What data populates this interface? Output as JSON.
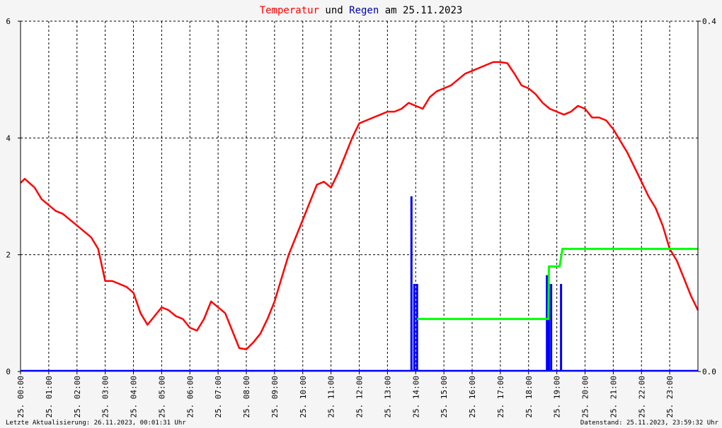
{
  "title": {
    "part1": "Temperatur",
    "part2": " und ",
    "part3": "Regen",
    "part4": " am 25.11.2023",
    "color1": "#ff0000",
    "color2": "#000000",
    "color3": "#0000aa",
    "color4": "#000000"
  },
  "footer": {
    "left": "Letzte Aktualisierung: 26.11.2023, 00:01:31 Uhr",
    "right": "Datenstand: 25.11.2023, 23:59:32 Uhr"
  },
  "chart_data": {
    "type": "line",
    "x_unit": "hour",
    "x_range": [
      0,
      24
    ],
    "x_ticks": [
      "25. 00:00",
      "25. 01:00",
      "25. 02:00",
      "25. 03:00",
      "25. 04:00",
      "25. 05:00",
      "25. 06:00",
      "25. 07:00",
      "25. 08:00",
      "25. 09:00",
      "25. 10:00",
      "25. 11:00",
      "25. 12:00",
      "25. 13:00",
      "25. 14:00",
      "25. 15:00",
      "25. 16:00",
      "25. 17:00",
      "25. 18:00",
      "25. 19:00",
      "25. 20:00",
      "25. 21:00",
      "25. 22:00",
      "25. 23:00"
    ],
    "y_left": {
      "range": [
        0,
        6
      ],
      "ticks": [
        "0",
        "2",
        "4",
        "6"
      ]
    },
    "y_right": {
      "range": [
        0,
        0.4
      ],
      "ticks": [
        "0.0",
        "0.4"
      ]
    },
    "grid": true,
    "series": [
      {
        "axis": "left",
        "color": "#ff0000",
        "kind": "line",
        "x": [
          0.0,
          0.15,
          0.5,
          0.75,
          1.0,
          1.25,
          1.5,
          1.75,
          2.0,
          2.25,
          2.5,
          2.75,
          3.0,
          3.25,
          3.5,
          3.75,
          4.0,
          4.25,
          4.5,
          4.75,
          5.0,
          5.25,
          5.5,
          5.75,
          6.0,
          6.25,
          6.5,
          6.75,
          7.0,
          7.25,
          7.5,
          7.75,
          8.0,
          8.25,
          8.5,
          8.75,
          9.0,
          9.25,
          9.5,
          9.75,
          10.0,
          10.25,
          10.5,
          10.75,
          11.0,
          11.25,
          11.5,
          11.75,
          12.0,
          12.25,
          12.5,
          12.75,
          13.0,
          13.25,
          13.5,
          13.75,
          14.0,
          14.25,
          14.5,
          14.75,
          15.0,
          15.25,
          15.5,
          15.75,
          16.0,
          16.25,
          16.5,
          16.75,
          17.0,
          17.25,
          17.5,
          17.75,
          18.0,
          18.25,
          18.5,
          18.75,
          19.0,
          19.25,
          19.5,
          19.75,
          20.0,
          20.25,
          20.5,
          20.75,
          21.0,
          21.25,
          21.5,
          21.75,
          22.0,
          22.25,
          22.5,
          22.75,
          23.0,
          23.25,
          23.5,
          23.75,
          24.0
        ],
        "values": [
          3.23,
          3.3,
          3.15,
          2.95,
          2.85,
          2.75,
          2.7,
          2.6,
          2.5,
          2.4,
          2.3,
          2.1,
          1.55,
          1.55,
          1.5,
          1.45,
          1.35,
          1.0,
          0.8,
          0.95,
          1.1,
          1.05,
          0.95,
          0.9,
          0.75,
          0.7,
          0.9,
          1.2,
          1.1,
          1.0,
          0.7,
          0.4,
          0.38,
          0.5,
          0.65,
          0.9,
          1.2,
          1.6,
          2.0,
          2.3,
          2.6,
          2.9,
          3.2,
          3.25,
          3.15,
          3.4,
          3.7,
          4.0,
          4.25,
          4.3,
          4.35,
          4.4,
          4.45,
          4.45,
          4.5,
          4.6,
          4.55,
          4.5,
          4.7,
          4.8,
          4.85,
          4.9,
          5.0,
          5.1,
          5.15,
          5.2,
          5.25,
          5.3,
          5.3,
          5.28,
          5.1,
          4.9,
          4.85,
          4.75,
          4.6,
          4.5,
          4.45,
          4.4,
          4.45,
          4.55,
          4.5,
          4.35,
          4.35,
          4.3,
          4.15,
          3.95,
          3.75,
          3.5,
          3.25,
          3.0,
          2.8,
          2.5,
          2.1,
          1.9,
          1.6,
          1.3,
          1.05
        ]
      },
      {
        "axis": "right",
        "color": "#0000ff",
        "kind": "bars",
        "x": [
          13.85,
          13.95,
          14.05,
          18.65,
          18.72,
          18.8,
          19.15
        ],
        "values": [
          0.2,
          0.1,
          0.1,
          0.11,
          0.1,
          0.1,
          0.1
        ]
      },
      {
        "axis": "right",
        "color": "#00ff00",
        "kind": "step",
        "x": [
          14.05,
          18.7,
          18.72,
          19.1,
          19.2,
          24.0
        ],
        "values": [
          0.06,
          0.06,
          0.12,
          0.12,
          0.14,
          0.14
        ]
      }
    ]
  }
}
